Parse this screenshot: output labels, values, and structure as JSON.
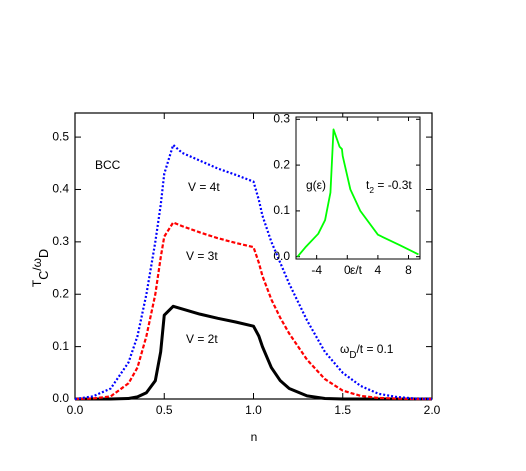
{
  "chart_data": [
    {
      "type": "line",
      "xlabel": "n",
      "ylabel": [
        "T",
        "C",
        "/ω",
        "D"
      ],
      "x": [
        0.0,
        0.1,
        0.2,
        0.3,
        0.35,
        0.4,
        0.45,
        0.48,
        0.5,
        0.55,
        0.6,
        0.7,
        0.8,
        0.9,
        1.0,
        1.03,
        1.05,
        1.1,
        1.15,
        1.2,
        1.3,
        1.4,
        1.5,
        1.6,
        1.7,
        1.8,
        1.9,
        2.0
      ],
      "series": [
        {
          "name": "V = 2t",
          "color": "#000000",
          "style": "solid",
          "values": [
            0,
            0,
            0,
            0.001,
            0.004,
            0.012,
            0.035,
            0.09,
            0.16,
            0.177,
            0.172,
            0.162,
            0.154,
            0.147,
            0.139,
            0.12,
            0.1,
            0.06,
            0.035,
            0.02,
            0.006,
            0.001,
            0,
            0,
            0,
            0,
            0,
            0
          ]
        },
        {
          "name": "V = 3t",
          "color": "#ff0000",
          "style": "dashed",
          "values": [
            0,
            0.001,
            0.005,
            0.03,
            0.06,
            0.12,
            0.2,
            0.27,
            0.31,
            0.337,
            0.33,
            0.318,
            0.307,
            0.298,
            0.29,
            0.26,
            0.235,
            0.19,
            0.155,
            0.125,
            0.075,
            0.038,
            0.016,
            0.006,
            0.002,
            0.001,
            0,
            0
          ]
        },
        {
          "name": "V = 4t",
          "color": "#0000ff",
          "style": "dotted",
          "values": [
            0,
            0.005,
            0.02,
            0.07,
            0.12,
            0.2,
            0.3,
            0.37,
            0.43,
            0.485,
            0.47,
            0.455,
            0.44,
            0.428,
            0.415,
            0.38,
            0.35,
            0.3,
            0.26,
            0.22,
            0.15,
            0.09,
            0.05,
            0.025,
            0.01,
            0.004,
            0.001,
            0
          ]
        }
      ],
      "annotations": [
        "BCC",
        [
          "ω",
          "D",
          "/t = 0.1"
        ]
      ],
      "xlim": [
        0,
        2
      ],
      "ylim": [
        0,
        0.546
      ],
      "xticks": [
        {
          "value": 0,
          "label": "0.0"
        },
        {
          "value": 0.5,
          "label": "0.5"
        },
        {
          "value": 1,
          "label": "1.0"
        },
        {
          "value": 1.5,
          "label": "1.5"
        },
        {
          "value": 2,
          "label": "2.0"
        }
      ],
      "yticks": [
        {
          "value": 0,
          "label": "0.0"
        },
        {
          "value": 0.1,
          "label": "0.1"
        },
        {
          "value": 0.2,
          "label": "0.2"
        },
        {
          "value": 0.3,
          "label": "0.3"
        },
        {
          "value": 0.4,
          "label": "0.4"
        },
        {
          "value": 0.5,
          "label": "0.5"
        }
      ]
    },
    {
      "type": "line",
      "xlabel": "ε/t",
      "ylabel": "g(ε)",
      "x": [
        -6.5,
        -5.5,
        -3.8,
        -2.9,
        -2.2,
        -1.8,
        -1.0,
        -0.7,
        -0.6,
        0.4,
        1.7,
        4,
        6.9,
        9.3
      ],
      "series": [
        {
          "color": "#00ff00",
          "style": "solid",
          "values": [
            0,
            0.02,
            0.05,
            0.08,
            0.14,
            0.278,
            0.24,
            0.235,
            0.22,
            0.147,
            0.1,
            0.048,
            0.025,
            0.005
          ]
        }
      ],
      "annotations": [
        [
          "t",
          "2",
          " = -0.3t"
        ]
      ],
      "xlim": [
        -6.7,
        9.5
      ],
      "ylim": [
        -0.005,
        0.305
      ],
      "xticks": [
        -4,
        0,
        4,
        8
      ],
      "yticks": [
        {
          "value": 0,
          "label": "0.0"
        },
        {
          "value": 0.1,
          "label": "0.1"
        },
        {
          "value": 0.2,
          "label": "0.2"
        },
        {
          "value": 0.3,
          "label": "0.3"
        }
      ]
    }
  ]
}
